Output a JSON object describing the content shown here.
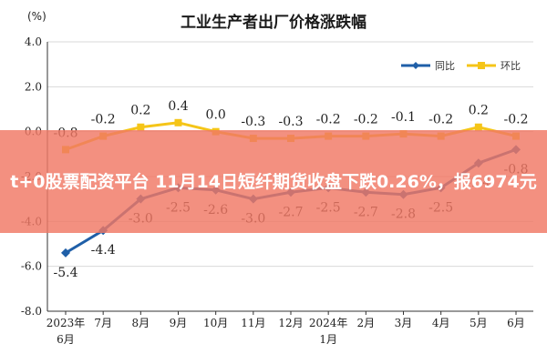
{
  "chart_data": {
    "type": "line",
    "title": "工业生产者出厂价格涨跌幅",
    "ylabel": "(%)",
    "ylim": [
      -8.0,
      4.0
    ],
    "yticks": [
      "4.0",
      "2.0",
      "0.0",
      "-2.0",
      "-4.0",
      "-6.0",
      "-8.0"
    ],
    "ytick_values": [
      4.0,
      2.0,
      0.0,
      -2.0,
      -4.0,
      -6.0,
      -8.0
    ],
    "categories": [
      [
        "2023年",
        "6月"
      ],
      [
        "7月"
      ],
      [
        "8月"
      ],
      [
        "9月"
      ],
      [
        "10月"
      ],
      [
        "11月"
      ],
      [
        "12月"
      ],
      [
        "2024年",
        "1月"
      ],
      [
        "2月"
      ],
      [
        "3月"
      ],
      [
        "4月"
      ],
      [
        "5月"
      ],
      [
        "6月"
      ]
    ],
    "grid": true,
    "legend": "top-right",
    "series": [
      {
        "name": "同比",
        "color": "#1f5fa8",
        "values": [
          -5.4,
          -4.4,
          -3.0,
          -2.5,
          -2.6,
          -3.0,
          -2.7,
          -2.5,
          -2.7,
          -2.8,
          -2.5,
          -1.4,
          -0.8
        ],
        "labels": [
          "-5.4",
          "-4.4",
          "-3.0",
          "-2.5",
          "-2.6",
          "-3.0",
          "-2.7",
          "-2.5",
          "-2.7",
          "-2.8",
          "-2.5",
          "-1.4",
          "-0.8"
        ]
      },
      {
        "name": "环比",
        "color": "#f5c518",
        "values": [
          -0.8,
          -0.2,
          0.2,
          0.4,
          0.0,
          -0.3,
          -0.3,
          -0.2,
          -0.2,
          -0.1,
          -0.2,
          0.2,
          -0.2
        ],
        "labels": [
          "-0.8",
          "-0.2",
          "0.2",
          "0.4",
          "0.0",
          "-0.3",
          "-0.3",
          "-0.2",
          "-0.2",
          "-0.1",
          "-0.2",
          "0.2",
          "-0.2"
        ]
      }
    ]
  },
  "banner": {
    "text": "t+0股票配资平台 11月14日短纤期货收盘下跌0.26%，报6974元"
  }
}
